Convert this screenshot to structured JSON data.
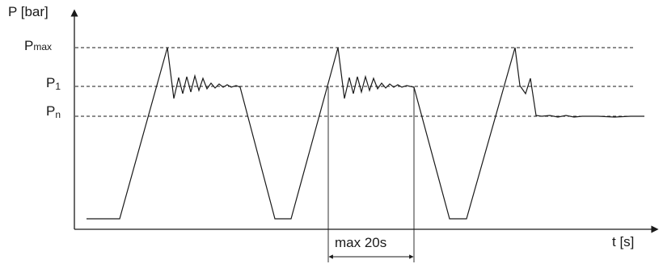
{
  "axes": {
    "y_label": "P [bar]",
    "x_label": "t [s]"
  },
  "levels": {
    "pmax": {
      "main": "P",
      "sub": "max"
    },
    "p1": {
      "main": "P",
      "sub": "1"
    },
    "pn": {
      "main": "P",
      "sub": "n"
    }
  },
  "annotation": {
    "interval_label": "max 20s"
  }
}
